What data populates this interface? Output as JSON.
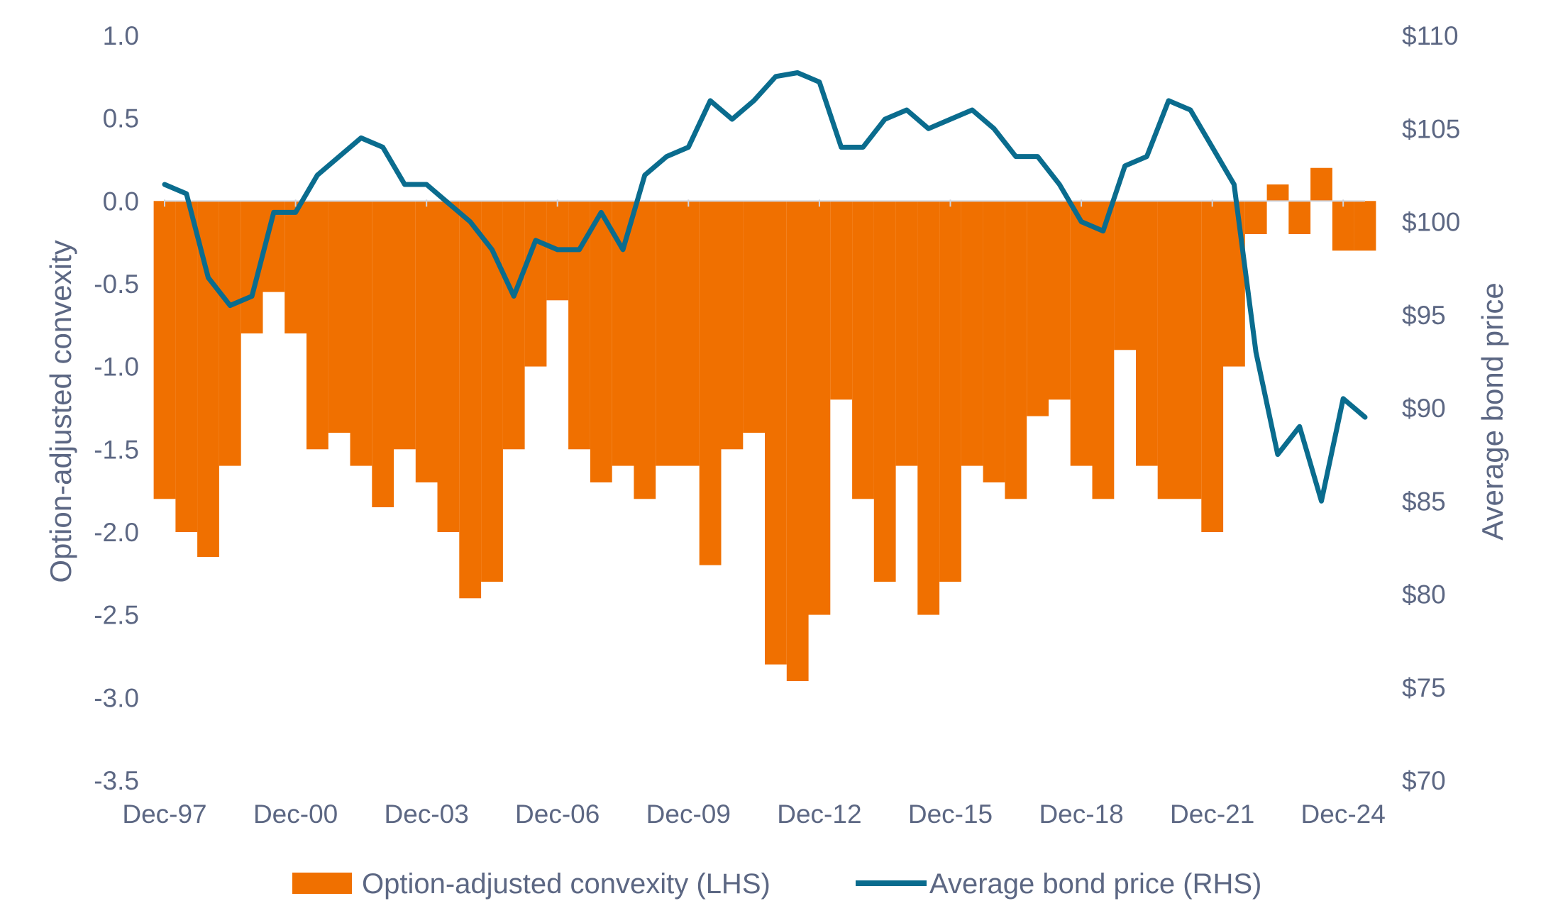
{
  "chart_data": {
    "type": "area",
    "x": [
      "Dec-97",
      "Jun-98",
      "Dec-98",
      "Jun-99",
      "Dec-99",
      "Jun-00",
      "Dec-00",
      "Jun-01",
      "Dec-01",
      "Jun-02",
      "Dec-02",
      "Jun-03",
      "Dec-03",
      "Jun-04",
      "Dec-04",
      "Jun-05",
      "Dec-05",
      "Jun-06",
      "Dec-06",
      "Jun-07",
      "Dec-07",
      "Jun-08",
      "Dec-08",
      "Jun-09",
      "Dec-09",
      "Jun-10",
      "Dec-10",
      "Jun-11",
      "Dec-11",
      "Jun-12",
      "Dec-12",
      "Jun-13",
      "Dec-13",
      "Jun-14",
      "Dec-14",
      "Jun-15",
      "Dec-15",
      "Jun-16",
      "Dec-16",
      "Jun-17",
      "Dec-17",
      "Jun-18",
      "Dec-18",
      "Jun-19",
      "Dec-19",
      "Jun-20",
      "Dec-20",
      "Jun-21",
      "Dec-21",
      "Jun-22",
      "Dec-22",
      "Jun-23",
      "Dec-23",
      "Jun-24",
      "Dec-24",
      "Mar-25"
    ],
    "x_ticks": [
      "Dec-97",
      "Dec-00",
      "Dec-03",
      "Dec-06",
      "Dec-09",
      "Dec-12",
      "Dec-15",
      "Dec-18",
      "Dec-21",
      "Dec-24"
    ],
    "series": [
      {
        "name": "Option-adjusted convexity (LHS)",
        "axis": "left",
        "chart_type": "area",
        "color": "#f07000",
        "values": [
          -1.8,
          -2.0,
          -2.15,
          -1.6,
          -0.8,
          -0.55,
          -0.8,
          -1.5,
          -1.4,
          -1.6,
          -1.85,
          -1.5,
          -1.7,
          -2.0,
          -2.4,
          -2.3,
          -1.5,
          -1.0,
          -0.6,
          -1.5,
          -1.7,
          -1.6,
          -1.8,
          -1.6,
          -1.6,
          -2.2,
          -1.5,
          -1.4,
          -2.8,
          -2.9,
          -2.5,
          -1.2,
          -1.8,
          -2.3,
          -1.6,
          -2.5,
          -2.3,
          -1.6,
          -1.7,
          -1.8,
          -1.3,
          -1.2,
          -1.6,
          -1.8,
          -0.9,
          -1.6,
          -1.8,
          -1.8,
          -2.0,
          -1.0,
          -0.2,
          0.1,
          -0.2,
          0.2,
          -0.3,
          -0.3
        ]
      },
      {
        "name": "Average bond price (RHS)",
        "axis": "right",
        "chart_type": "line",
        "color": "#0a6c8e",
        "values": [
          102,
          101.5,
          97,
          95.5,
          96,
          100.5,
          100.5,
          102.5,
          103.5,
          104.5,
          104,
          102,
          102,
          101,
          100,
          98.5,
          96,
          99,
          98.5,
          98.5,
          100.5,
          98.5,
          102.5,
          103.5,
          104,
          106.5,
          105.5,
          106.5,
          107.8,
          108,
          107.5,
          104,
          104,
          105.5,
          106,
          105,
          105.5,
          106,
          105,
          103.5,
          103.5,
          102,
          100,
          99.5,
          103,
          103.5,
          106.5,
          106,
          104,
          102,
          93,
          87.5,
          89,
          85,
          90.5,
          89.5
        ]
      }
    ],
    "y_left": {
      "label": "Option-adjusted convexity",
      "ylim": [
        -3.5,
        1.0
      ],
      "ticks": [
        "1.0",
        "0.5",
        "0.0",
        "-0.5",
        "-1.0",
        "-1.5",
        "-2.0",
        "-2.5",
        "-3.0",
        "-3.5"
      ]
    },
    "y_right": {
      "label": "Average bond price",
      "ylim": [
        70,
        110
      ],
      "ticks": [
        "$110",
        "$105",
        "$100",
        "$95",
        "$90",
        "$85",
        "$80",
        "$75",
        "$70"
      ]
    },
    "grid": false,
    "legend": {
      "position": "bottom",
      "items": [
        "Option-adjusted convexity (LHS)",
        "Average bond price (RHS)"
      ]
    }
  }
}
